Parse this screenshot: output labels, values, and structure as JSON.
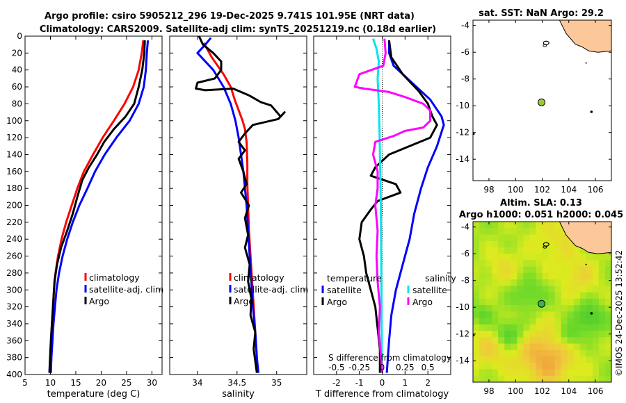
{
  "titles": {
    "line1": "Argo profile: csiro 5905212_296 19-Dec-2025 9.741S 101.95E (NRT data)",
    "line2": "Climatology: CARS2009. Satellite-adj clim: synTS_20251219.nc (0.18d earlier)"
  },
  "colors": {
    "climatology": "#ff0000",
    "satellite": "#0000ff",
    "argo": "#000000",
    "salinity_sat": "#00e5ee",
    "salinity_argo": "#ff00ff",
    "land": "#fcc89a"
  },
  "watermark": "©IMOS 24-Dec-2025 13:52:42",
  "chart_data": [
    {
      "type": "line",
      "panel": "temperature",
      "xlabel": "temperature (deg C)",
      "ylabel": "",
      "xlim": [
        5,
        32
      ],
      "ylim": [
        400,
        0
      ],
      "xticks": [
        "5",
        "10",
        "15",
        "20",
        "25",
        "30"
      ],
      "yticks": [
        "0",
        "20",
        "40",
        "60",
        "80",
        "100",
        "120",
        "140",
        "160",
        "180",
        "200",
        "220",
        "240",
        "260",
        "280",
        "300",
        "320",
        "340",
        "360",
        "380",
        "400"
      ],
      "legend": [
        "climatology",
        "satellite-adj. clim",
        "Argo"
      ],
      "series": [
        {
          "name": "climatology",
          "color": "#ff0000",
          "points": [
            [
              28.3,
              5
            ],
            [
              28.0,
              20
            ],
            [
              27.4,
              40
            ],
            [
              26.3,
              60
            ],
            [
              24.6,
              80
            ],
            [
              22.5,
              100
            ],
            [
              20.3,
              120
            ],
            [
              18.4,
              140
            ],
            [
              16.6,
              160
            ],
            [
              15.3,
              180
            ],
            [
              14.2,
              200
            ],
            [
              13.1,
              220
            ],
            [
              12.2,
              240
            ],
            [
              11.5,
              260
            ],
            [
              11.0,
              280
            ],
            [
              10.7,
              300
            ],
            [
              10.5,
              320
            ],
            [
              10.3,
              340
            ],
            [
              10.1,
              360
            ],
            [
              10.0,
              380
            ],
            [
              9.9,
              398
            ]
          ]
        },
        {
          "name": "satellite-adj. clim",
          "color": "#0000ff",
          "points": [
            [
              29.2,
              5
            ],
            [
              29.0,
              20
            ],
            [
              28.8,
              40
            ],
            [
              28.4,
              60
            ],
            [
              27.4,
              80
            ],
            [
              25.6,
              100
            ],
            [
              23.0,
              120
            ],
            [
              20.7,
              140
            ],
            [
              18.8,
              160
            ],
            [
              17.3,
              180
            ],
            [
              15.7,
              200
            ],
            [
              14.4,
              220
            ],
            [
              13.3,
              240
            ],
            [
              12.4,
              260
            ],
            [
              11.7,
              280
            ],
            [
              11.2,
              300
            ],
            [
              10.9,
              320
            ],
            [
              10.6,
              340
            ],
            [
              10.4,
              360
            ],
            [
              10.2,
              380
            ],
            [
              10.1,
              398
            ]
          ]
        },
        {
          "name": "Argo",
          "color": "#000000",
          "points": [
            [
              28.6,
              5
            ],
            [
              28.5,
              20
            ],
            [
              28.1,
              40
            ],
            [
              27.4,
              60
            ],
            [
              26.5,
              80
            ],
            [
              24.8,
              95
            ],
            [
              22.5,
              110
            ],
            [
              20.6,
              125
            ],
            [
              19.2,
              140
            ],
            [
              17.6,
              155
            ],
            [
              16.3,
              170
            ],
            [
              15.3,
              190
            ],
            [
              14.4,
              210
            ],
            [
              13.3,
              230
            ],
            [
              12.1,
              250
            ],
            [
              11.3,
              270
            ],
            [
              10.8,
              290
            ],
            [
              10.6,
              310
            ],
            [
              10.4,
              330
            ],
            [
              10.2,
              350
            ],
            [
              10.0,
              370
            ],
            [
              9.8,
              398
            ]
          ]
        }
      ]
    },
    {
      "type": "line",
      "panel": "salinity",
      "xlabel": "salinity",
      "xlim": [
        33.65,
        35.38
      ],
      "ylim": [
        400,
        0
      ],
      "xticks": [
        "34",
        "34.5",
        "35"
      ],
      "legend": [
        "climatology",
        "satellite-adj. clim",
        "Argo"
      ],
      "series": [
        {
          "name": "climatology",
          "color": "#ff0000",
          "points": [
            [
              34.08,
              8
            ],
            [
              34.18,
              25
            ],
            [
              34.33,
              45
            ],
            [
              34.42,
              60
            ],
            [
              34.47,
              75
            ],
            [
              34.53,
              90
            ],
            [
              34.57,
              100
            ],
            [
              34.6,
              110
            ],
            [
              34.62,
              125
            ],
            [
              34.63,
              150
            ],
            [
              34.63,
              175
            ],
            [
              34.64,
              200
            ],
            [
              34.65,
              230
            ],
            [
              34.67,
              260
            ],
            [
              34.69,
              290
            ],
            [
              34.71,
              320
            ],
            [
              34.73,
              350
            ],
            [
              34.75,
              380
            ],
            [
              34.76,
              398
            ]
          ]
        },
        {
          "name": "satellite-adj. clim",
          "color": "#0000ff",
          "points": [
            [
              34.17,
              2
            ],
            [
              34.1,
              10
            ],
            [
              34.0,
              20
            ],
            [
              34.2,
              40
            ],
            [
              34.33,
              60
            ],
            [
              34.42,
              80
            ],
            [
              34.48,
              100
            ],
            [
              34.52,
              120
            ],
            [
              34.55,
              140
            ],
            [
              34.58,
              160
            ],
            [
              34.6,
              180
            ],
            [
              34.62,
              200
            ],
            [
              34.64,
              230
            ],
            [
              34.66,
              260
            ],
            [
              34.68,
              290
            ],
            [
              34.7,
              320
            ],
            [
              34.73,
              350
            ],
            [
              34.75,
              380
            ],
            [
              34.77,
              398
            ]
          ]
        },
        {
          "name": "Argo",
          "color": "#000000",
          "points": [
            [
              34.02,
              0
            ],
            [
              34.07,
              10
            ],
            [
              34.2,
              20
            ],
            [
              34.3,
              30
            ],
            [
              34.3,
              40
            ],
            [
              34.22,
              50
            ],
            [
              34.0,
              55
            ],
            [
              33.98,
              62
            ],
            [
              34.1,
              64
            ],
            [
              34.45,
              62
            ],
            [
              34.65,
              70
            ],
            [
              34.8,
              78
            ],
            [
              34.93,
              82
            ],
            [
              35.05,
              95
            ],
            [
              35.1,
              90
            ],
            [
              35.02,
              98
            ],
            [
              34.7,
              105
            ],
            [
              34.6,
              115
            ],
            [
              34.52,
              125
            ],
            [
              34.6,
              135
            ],
            [
              34.52,
              145
            ],
            [
              34.58,
              160
            ],
            [
              34.62,
              175
            ],
            [
              34.55,
              185
            ],
            [
              34.65,
              200
            ],
            [
              34.6,
              215
            ],
            [
              34.64,
              235
            ],
            [
              34.6,
              250
            ],
            [
              34.66,
              270
            ],
            [
              34.64,
              290
            ],
            [
              34.68,
              310
            ],
            [
              34.67,
              330
            ],
            [
              34.73,
              350
            ],
            [
              34.71,
              370
            ],
            [
              34.75,
              398
            ]
          ]
        }
      ]
    },
    {
      "type": "line",
      "panel": "difference",
      "xlabel": "T difference from climatology",
      "xlabel_top": "S difference from climatology",
      "xlim": [
        -3,
        3
      ],
      "ylim": [
        400,
        0
      ],
      "xticks": [
        "-2",
        "-1",
        "0",
        "1",
        "2"
      ],
      "xticks_top": [
        "-0.5",
        "-0.25",
        "0",
        "0.25",
        "0.5"
      ],
      "legend_titles": [
        "temperature",
        "salinity"
      ],
      "legend": [
        "satellite",
        "Argo",
        "satellite",
        "Argo"
      ],
      "series": [
        {
          "name": "T satellite",
          "color": "#0000ff",
          "points": [
            [
              0.3,
              5
            ],
            [
              0.3,
              20
            ],
            [
              0.5,
              35
            ],
            [
              1.3,
              55
            ],
            [
              2.1,
              75
            ],
            [
              2.6,
              95
            ],
            [
              2.7,
              105
            ],
            [
              2.4,
              130
            ],
            [
              2.0,
              155
            ],
            [
              1.7,
              180
            ],
            [
              1.4,
              210
            ],
            [
              1.2,
              240
            ],
            [
              0.9,
              270
            ],
            [
              0.6,
              300
            ],
            [
              0.4,
              330
            ],
            [
              0.3,
              360
            ],
            [
              0.2,
              398
            ]
          ]
        },
        {
          "name": "T Argo",
          "color": "#000000",
          "points": [
            [
              0.3,
              5
            ],
            [
              0.4,
              25
            ],
            [
              0.9,
              45
            ],
            [
              1.6,
              65
            ],
            [
              2.0,
              80
            ],
            [
              2.2,
              95
            ],
            [
              2.4,
              105
            ],
            [
              2.1,
              120
            ],
            [
              0.3,
              140
            ],
            [
              -0.3,
              155
            ],
            [
              -0.5,
              165
            ],
            [
              0.6,
              175
            ],
            [
              0.8,
              185
            ],
            [
              -0.2,
              195
            ],
            [
              -0.5,
              205
            ],
            [
              -0.9,
              220
            ],
            [
              -1.0,
              240
            ],
            [
              -0.8,
              260
            ],
            [
              -0.7,
              280
            ],
            [
              -0.5,
              300
            ],
            [
              -0.3,
              320
            ],
            [
              -0.2,
              345
            ],
            [
              -0.1,
              370
            ],
            [
              -0.1,
              398
            ]
          ]
        },
        {
          "name": "S satellite",
          "color": "#00e5ee",
          "points": [
            [
              -0.4,
              3
            ],
            [
              -0.25,
              15
            ],
            [
              -0.15,
              30
            ],
            [
              -0.2,
              50
            ],
            [
              -0.15,
              80
            ],
            [
              -0.12,
              110
            ],
            [
              -0.1,
              140
            ],
            [
              -0.08,
              170
            ],
            [
              -0.06,
              200
            ],
            [
              -0.05,
              240
            ],
            [
              -0.04,
              280
            ],
            [
              -0.03,
              320
            ],
            [
              -0.02,
              360
            ],
            [
              -0.01,
              398
            ]
          ]
        },
        {
          "name": "S Argo",
          "color": "#ff00ff",
          "points": [
            [
              0.1,
              3
            ],
            [
              0.15,
              20
            ],
            [
              0.05,
              35
            ],
            [
              -1.0,
              45
            ],
            [
              -1.2,
              60
            ],
            [
              -0.8,
              62
            ],
            [
              0.3,
              66
            ],
            [
              1.0,
              72
            ],
            [
              1.8,
              80
            ],
            [
              2.1,
              88
            ],
            [
              2.1,
              100
            ],
            [
              1.8,
              108
            ],
            [
              1.0,
              112
            ],
            [
              0.5,
              118
            ],
            [
              -0.3,
              125
            ],
            [
              -0.4,
              140
            ],
            [
              -0.2,
              160
            ],
            [
              -0.2,
              180
            ],
            [
              -0.3,
              200
            ],
            [
              -0.2,
              230
            ],
            [
              -0.25,
              260
            ],
            [
              -0.2,
              290
            ],
            [
              -0.1,
              320
            ],
            [
              -0.15,
              350
            ],
            [
              -0.05,
              380
            ],
            [
              0.0,
              398
            ]
          ]
        }
      ]
    },
    {
      "type": "map",
      "panel": "sst",
      "title": "sat. SST: NaN Argo: 29.2",
      "xlim": [
        96.8,
        107.2
      ],
      "ylim": [
        -15.6,
        -3.6
      ],
      "xticks": [
        "98",
        "100",
        "102",
        "104",
        "106"
      ],
      "yticks": [
        "-4",
        "-6",
        "-8",
        "-10",
        "-12",
        "-14"
      ],
      "profile_position": {
        "lon": 101.95,
        "lat": -9.741
      },
      "profile_color": "#9acd32"
    },
    {
      "type": "heatmap",
      "panel": "sla",
      "title_line1": "Altim. SLA: 0.13",
      "title_line2": "Argo h1000: 0.051 h2000: 0.045",
      "xlim": [
        96.8,
        107.2
      ],
      "ylim": [
        -15.6,
        -3.6
      ],
      "xticks": [
        "98",
        "100",
        "102",
        "104",
        "106"
      ],
      "yticks": [
        "-4",
        "-6",
        "-8",
        "-10",
        "-12",
        "-14"
      ],
      "profile_position": {
        "lon": 101.95,
        "lat": -9.741
      },
      "profile_color": "#3cb34a",
      "field_range": [
        -0.05,
        0.25
      ]
    }
  ]
}
